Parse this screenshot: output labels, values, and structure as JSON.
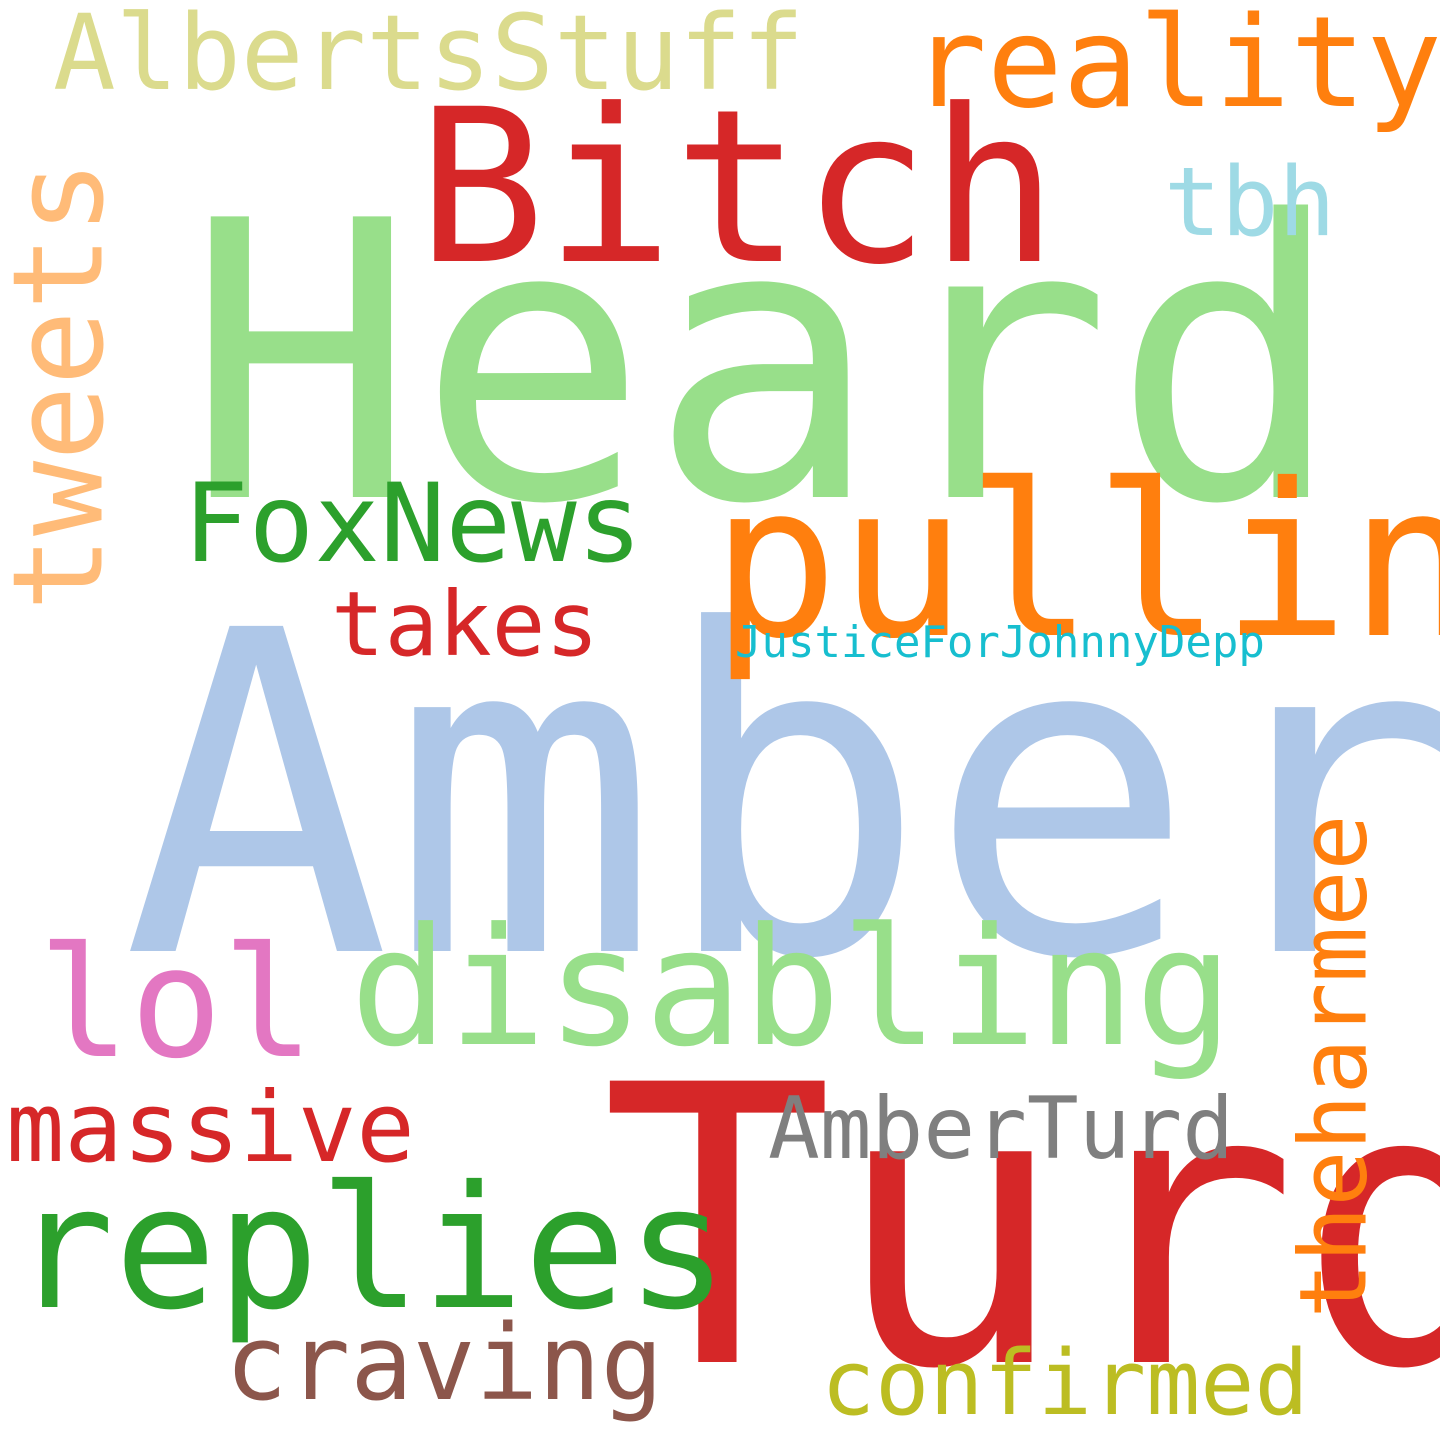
{
  "words": {
    "amber": {
      "text": "Amber",
      "color": "#aec7e8"
    },
    "heard": {
      "text": "Heard",
      "color": "#98df8a"
    },
    "turd": {
      "text": "Turd",
      "color": "#d62728"
    },
    "bitch": {
      "text": "Bitch",
      "color": "#d62728"
    },
    "pulling": {
      "text": "pulling",
      "color": "#ff7f0e"
    },
    "disabling": {
      "text": "disabling",
      "color": "#98df8a"
    },
    "replies": {
      "text": "replies",
      "color": "#2ca02c"
    },
    "tweets": {
      "text": "tweets",
      "color": "#ffbb78"
    },
    "reality": {
      "text": "reality",
      "color": "#ff7f0e"
    },
    "albertsstuff": {
      "text": "AlbertsStuff",
      "color": "#dbdb8d"
    },
    "foxnews": {
      "text": "FoxNews",
      "color": "#2ca02c"
    },
    "lol": {
      "text": "lol",
      "color": "#e377c2"
    },
    "theharmee": {
      "text": "theharmee",
      "color": "#ff7f0e"
    },
    "massive": {
      "text": "massive",
      "color": "#d62728"
    },
    "amberturd": {
      "text": "AmberTurd",
      "color": "#7f7f7f"
    },
    "craving": {
      "text": "craving",
      "color": "#8c564b"
    },
    "confirmed": {
      "text": "confirmed",
      "color": "#bcbd22"
    },
    "takes": {
      "text": "takes",
      "color": "#d62728"
    },
    "tbh": {
      "text": "tbh",
      "color": "#9edae5"
    },
    "justice": {
      "text": "JusticeForJohnnyDepp",
      "color": "#17becf"
    }
  }
}
